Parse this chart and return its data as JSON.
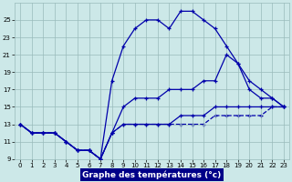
{
  "xlabel": "Graphe des températures (°c)",
  "xlim": [
    -0.5,
    23.5
  ],
  "ylim": [
    9,
    27
  ],
  "yticks": [
    9,
    11,
    13,
    15,
    17,
    19,
    21,
    23,
    25
  ],
  "xticks": [
    0,
    1,
    2,
    3,
    4,
    5,
    6,
    7,
    8,
    9,
    10,
    11,
    12,
    13,
    14,
    15,
    16,
    17,
    18,
    19,
    20,
    21,
    22,
    23
  ],
  "bg_color": "#cce8e8",
  "line_color": "#0000aa",
  "grid_color": "#99bbbb",
  "curve1_x": [
    0,
    1,
    2,
    3,
    4,
    5,
    6,
    7,
    8,
    9,
    10,
    11,
    12,
    13,
    14,
    15,
    16,
    17,
    18,
    19,
    20,
    21,
    22,
    23
  ],
  "curve1_y": [
    13,
    12,
    12,
    12,
    11,
    10,
    10,
    9,
    18,
    22,
    24,
    25,
    25,
    24,
    26,
    26,
    25,
    24,
    22,
    20,
    17,
    16,
    16,
    15
  ],
  "curve2_x": [
    0,
    1,
    2,
    3,
    4,
    5,
    6,
    7,
    8,
    9,
    10,
    11,
    12,
    13,
    14,
    15,
    16,
    17,
    18,
    19,
    20,
    21,
    22,
    23
  ],
  "curve2_y": [
    13,
    12,
    12,
    12,
    11,
    10,
    10,
    9,
    12,
    15,
    16,
    16,
    16,
    17,
    17,
    17,
    18,
    18,
    21,
    20,
    18,
    17,
    16,
    15
  ],
  "curve3_x": [
    0,
    1,
    2,
    3,
    4,
    5,
    6,
    7,
    8,
    9,
    10,
    11,
    12,
    13,
    14,
    15,
    16,
    17,
    18,
    19,
    20,
    21,
    22,
    23
  ],
  "curve3_y": [
    13,
    12,
    12,
    12,
    11,
    10,
    10,
    9,
    12,
    13,
    13,
    13,
    13,
    13,
    14,
    14,
    14,
    15,
    15,
    15,
    15,
    15,
    15,
    15
  ],
  "curve4_x": [
    0,
    1,
    2,
    3,
    4,
    5,
    6,
    7,
    8,
    9,
    10,
    11,
    12,
    13,
    14,
    15,
    16,
    17,
    18,
    19,
    20,
    21,
    22,
    23
  ],
  "curve4_y": [
    13,
    12,
    12,
    12,
    11,
    10,
    10,
    9,
    12,
    13,
    13,
    13,
    13,
    13,
    13,
    13,
    13,
    14,
    14,
    14,
    14,
    14,
    15,
    15
  ],
  "xlabel_bg": "#000088",
  "xlabel_fg": "#ffffff",
  "xlabel_fontsize": 6.5
}
